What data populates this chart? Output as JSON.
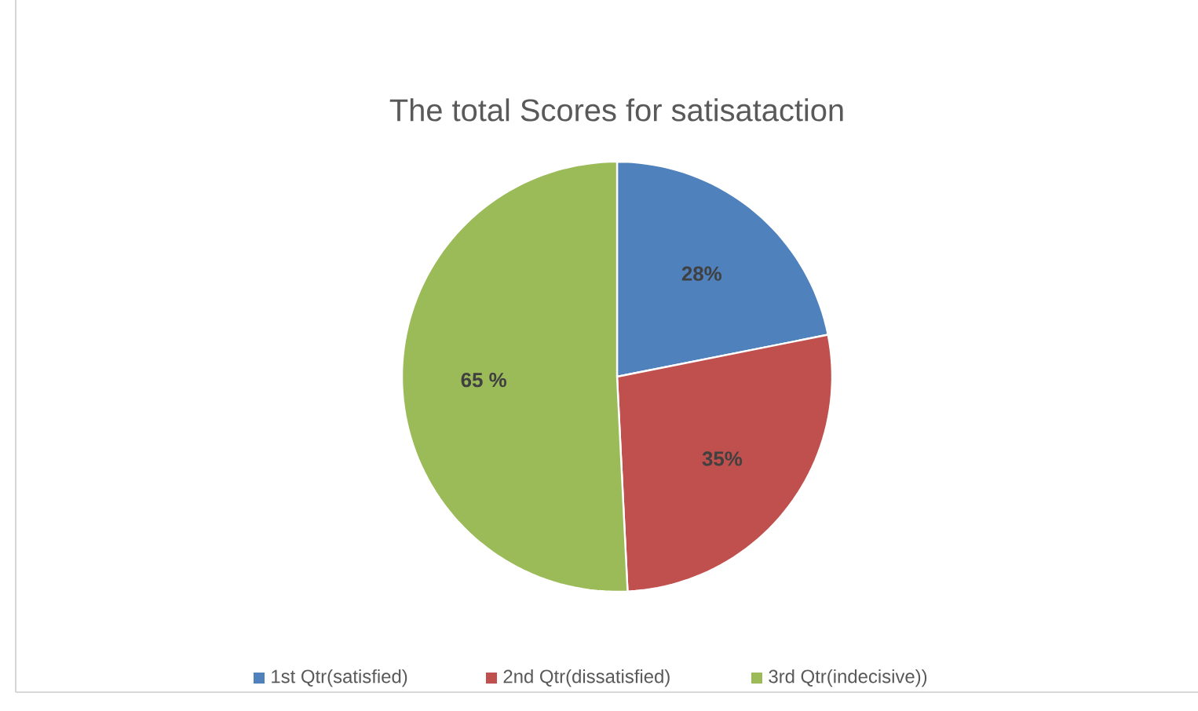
{
  "chart_data": {
    "type": "pie",
    "title": "The total Scores for satisataction",
    "categories": [
      "1st Qtr(satisfied)",
      "2nd Qtr(dissatisfied)",
      "3rd Qtr(indecisive))"
    ],
    "values": [
      28,
      35,
      65
    ],
    "value_labels": [
      "28%",
      "35%",
      "65 %"
    ],
    "colors": [
      "#4f81bd",
      "#c0504d",
      "#9bbb59"
    ],
    "legend": "bottom"
  }
}
